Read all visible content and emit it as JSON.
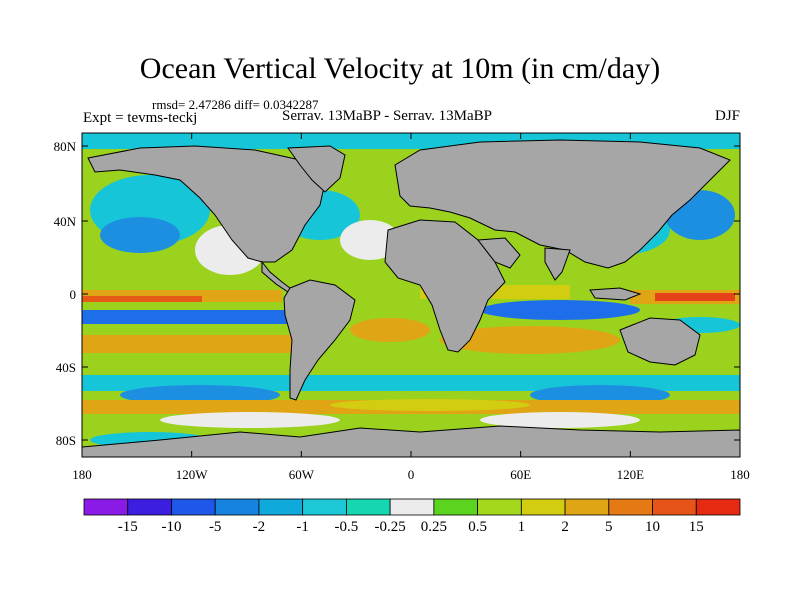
{
  "title": "Ocean Vertical Velocity at 10m (in cm/day)",
  "stats": "rmsd= 2.47286 diff= 0.0342287",
  "expt_label": "Expt = tevms-teckj",
  "center_label": "Serrav.  13MaBP - Serrav.  13MaBP",
  "season": "DJF",
  "y_ticks": [
    "80N",
    "40N",
    "0",
    "40S",
    "80S"
  ],
  "x_ticks": [
    "180",
    "120W",
    "60W",
    "0",
    "60E",
    "120E",
    "180"
  ],
  "colorbar": {
    "labels": [
      "-15",
      "-10",
      "-5",
      "-2",
      "-1",
      "-0.5",
      "-0.25",
      "0.25",
      "0.5",
      "1",
      "2",
      "5",
      "10",
      "15"
    ],
    "colors": [
      "#8a1ae6",
      "#3c1ee0",
      "#1f57e8",
      "#1783e0",
      "#10a9dc",
      "#1cc7d6",
      "#16d6b2",
      "#ececec",
      "#5ad41e",
      "#a3d81c",
      "#d2cd10",
      "#e0a514",
      "#e57a14",
      "#e6541a",
      "#e62a12"
    ]
  },
  "land_color": "#a6a6a6"
}
